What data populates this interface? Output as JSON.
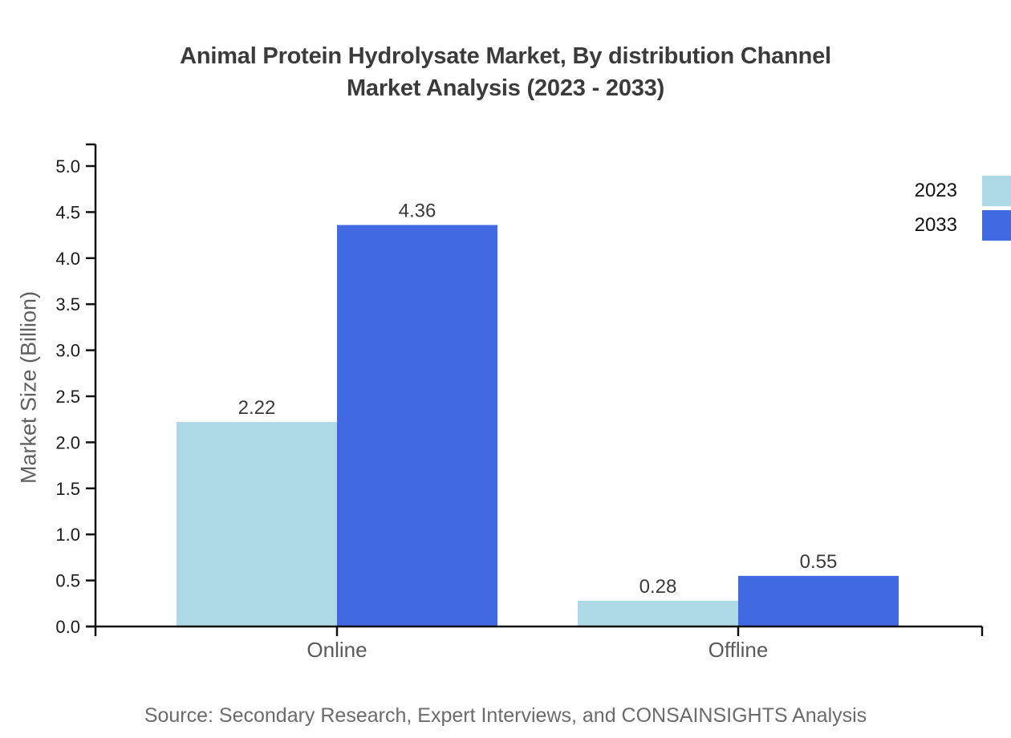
{
  "header": {
    "title_line1": "Animal Protein Hydrolysate Market, By distribution Channel",
    "title_line2": "Market Analysis (2023 - 2033)"
  },
  "chart_data": {
    "type": "bar",
    "title": "Animal Protein Hydrolysate Market, By distribution Channel Market Analysis (2023 - 2033)",
    "categories": [
      "Online",
      "Offline"
    ],
    "series": [
      {
        "name": "2023",
        "color": "#ADD8E6",
        "values": [
          2.22,
          0.28
        ]
      },
      {
        "name": "2033",
        "color": "#4169E1",
        "values": [
          4.36,
          0.55
        ]
      }
    ],
    "xlabel": "",
    "ylabel": "Market Size (Billion)",
    "ylim": [
      0,
      5.0
    ],
    "ytick_step": 0.5,
    "ytick_labels": [
      "0.0",
      "0.5",
      "1.0",
      "1.5",
      "2.0",
      "2.5",
      "3.0",
      "3.5",
      "4.0",
      "4.5",
      "5.0"
    ],
    "grid": false,
    "legend_position": "top-right",
    "value_label_format": "0.00",
    "axis_color": "#111111"
  },
  "footer": {
    "source": "Source: Secondary Research, Expert Interviews, and CONSAINSIGHTS Analysis"
  }
}
